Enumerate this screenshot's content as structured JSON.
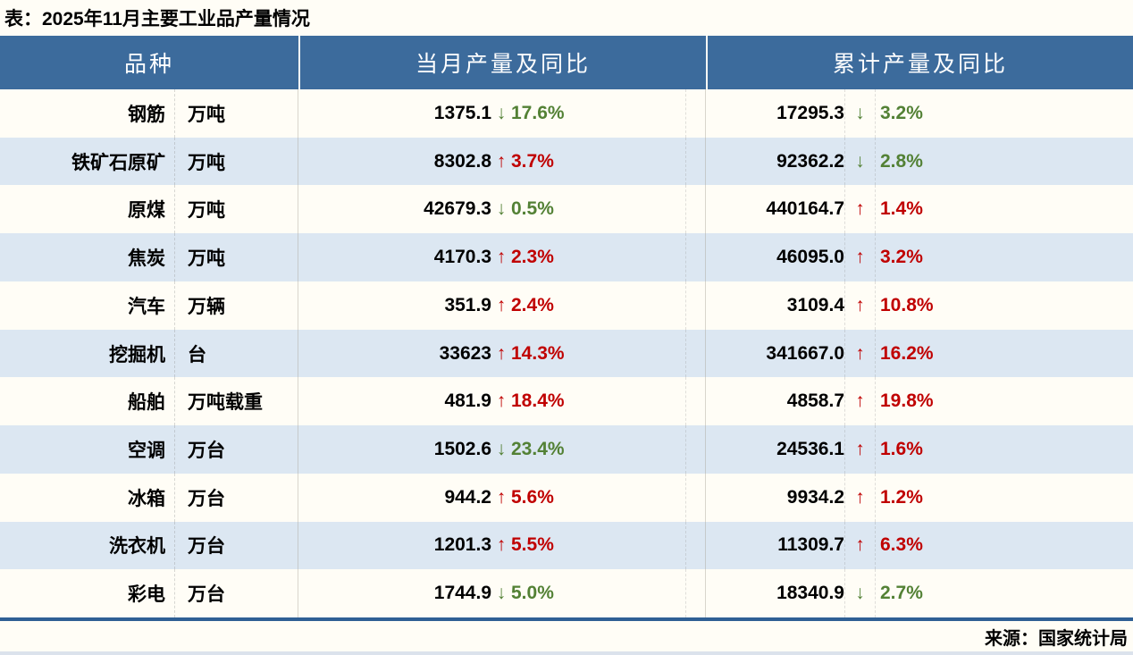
{
  "title": "表：2025年11月主要工业品产量情况",
  "source": "来源：国家统计局",
  "colors": {
    "page_bg": "#fffdf6",
    "header_bg": "#3c6b9c",
    "band_bg": "#dce7f2",
    "up_red": "#c00000",
    "down_green": "#538135",
    "border_blue": "#2f5f94",
    "strip_bg": "#dbe2ec"
  },
  "chart_data": {
    "type": "table",
    "title": "表：2025年11月主要工业品产量情况",
    "headers": [
      "品种",
      "当月产量及同比",
      "累计产量及同比"
    ],
    "rows": [
      {
        "name": "钢筋",
        "unit": "万吨",
        "month": {
          "value": "1375.1",
          "arrow": "↓",
          "dir": "down",
          "pct": "17.6%"
        },
        "cum": {
          "value": "17295.3",
          "arrow": "↓",
          "dir": "down",
          "pct": "3.2%"
        }
      },
      {
        "name": "铁矿石原矿",
        "unit": "万吨",
        "month": {
          "value": "8302.8",
          "arrow": "↑",
          "dir": "up",
          "pct": "3.7%"
        },
        "cum": {
          "value": "92362.2",
          "arrow": "↓",
          "dir": "down",
          "pct": "2.8%"
        }
      },
      {
        "name": "原煤",
        "unit": "万吨",
        "month": {
          "value": "42679.3",
          "arrow": "↓",
          "dir": "down",
          "pct": "0.5%"
        },
        "cum": {
          "value": "440164.7",
          "arrow": "↑",
          "dir": "up",
          "pct": "1.4%"
        }
      },
      {
        "name": "焦炭",
        "unit": "万吨",
        "month": {
          "value": "4170.3",
          "arrow": "↑",
          "dir": "up",
          "pct": "2.3%"
        },
        "cum": {
          "value": "46095.0",
          "arrow": "↑",
          "dir": "up",
          "pct": "3.2%"
        }
      },
      {
        "name": "汽车",
        "unit": "万辆",
        "month": {
          "value": "351.9",
          "arrow": "↑",
          "dir": "up",
          "pct": "2.4%"
        },
        "cum": {
          "value": "3109.4",
          "arrow": "↑",
          "dir": "up",
          "pct": "10.8%"
        }
      },
      {
        "name": "挖掘机",
        "unit": "台",
        "month": {
          "value": "33623",
          "arrow": "↑",
          "dir": "up",
          "pct": "14.3%"
        },
        "cum": {
          "value": "341667.0",
          "arrow": "↑",
          "dir": "up",
          "pct": "16.2%"
        }
      },
      {
        "name": "船舶",
        "unit": "万吨载重",
        "month": {
          "value": "481.9",
          "arrow": "↑",
          "dir": "up",
          "pct": "18.4%"
        },
        "cum": {
          "value": "4858.7",
          "arrow": "↑",
          "dir": "up",
          "pct": "19.8%"
        }
      },
      {
        "name": "空调",
        "unit": "万台",
        "month": {
          "value": "1502.6",
          "arrow": "↓",
          "dir": "down",
          "pct": "23.4%"
        },
        "cum": {
          "value": "24536.1",
          "arrow": "↑",
          "dir": "up",
          "pct": "1.6%"
        }
      },
      {
        "name": "冰箱",
        "unit": "万台",
        "month": {
          "value": "944.2",
          "arrow": "↑",
          "dir": "up",
          "pct": "5.6%"
        },
        "cum": {
          "value": "9934.2",
          "arrow": "↑",
          "dir": "up",
          "pct": "1.2%"
        }
      },
      {
        "name": "洗衣机",
        "unit": "万台",
        "month": {
          "value": "1201.3",
          "arrow": "↑",
          "dir": "up",
          "pct": "5.5%"
        },
        "cum": {
          "value": "11309.7",
          "arrow": "↑",
          "dir": "up",
          "pct": "6.3%"
        }
      },
      {
        "name": "彩电",
        "unit": "万台",
        "month": {
          "value": "1744.9",
          "arrow": "↓",
          "dir": "down",
          "pct": "5.0%"
        },
        "cum": {
          "value": "18340.9",
          "arrow": "↓",
          "dir": "down",
          "pct": "2.7%"
        }
      }
    ]
  }
}
